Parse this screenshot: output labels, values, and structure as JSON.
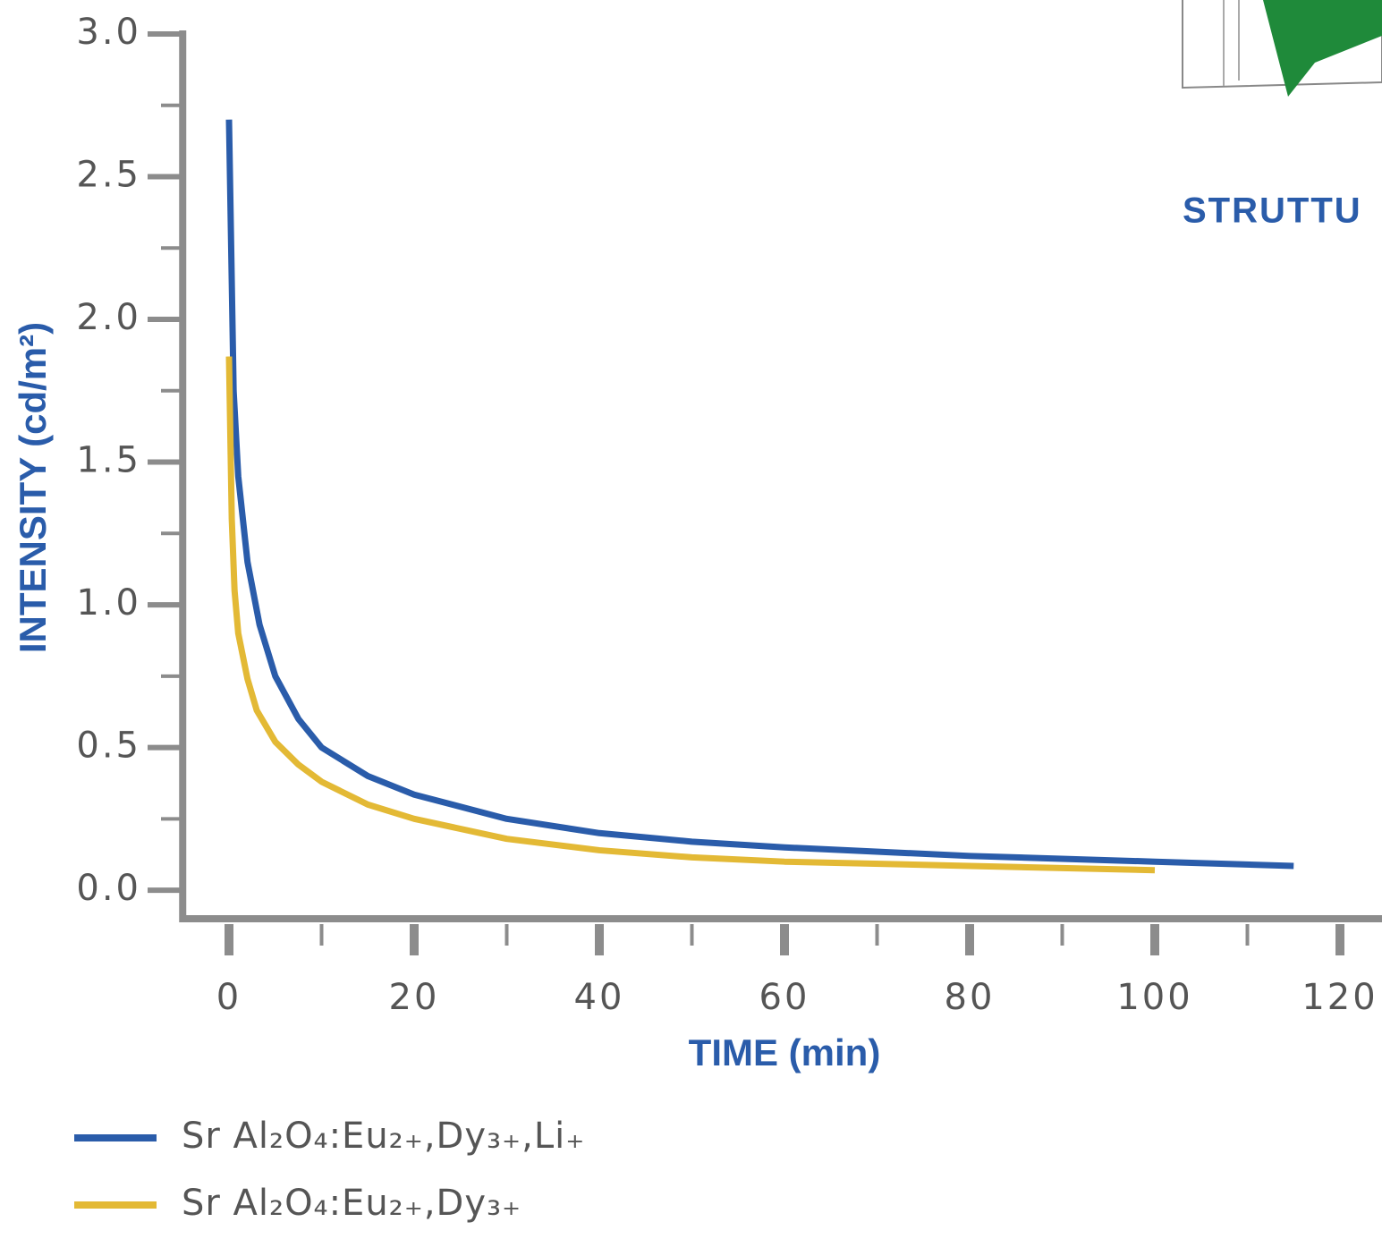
{
  "chart_data": {
    "type": "line",
    "x_label": "TIME (min)",
    "y_label": "INTENSITY (cd/m²)",
    "annotations": [
      "STRUTTU"
    ],
    "xlim": [
      -5,
      125
    ],
    "ylim": [
      -0.1,
      3.0
    ],
    "xticks": [
      0,
      20,
      40,
      60,
      80,
      100,
      120
    ],
    "xminorticks": [
      10,
      30,
      50,
      70,
      90,
      110
    ],
    "yticks": [
      {
        "value": 0,
        "label": "0.0"
      },
      0.5,
      {
        "value": 1,
        "label": "1.0"
      },
      1.5,
      {
        "value": 2,
        "label": "2.0"
      },
      2.5,
      {
        "value": 3,
        "label": "3.0"
      }
    ],
    "yminorticks": [
      0.25,
      0.75,
      1.25,
      1.75,
      2.25,
      2.75
    ],
    "axis_color": "#8c8c8c",
    "series": [
      {
        "name": "Sr Al₂O₄:Eu₂₊,Dy₃₊,Li₊",
        "color": "#2a5caa",
        "x": [
          0,
          0.5,
          1,
          2,
          3.3,
          5,
          7.5,
          10,
          15,
          20,
          30,
          40,
          50,
          60,
          80,
          100,
          115
        ],
        "values": [
          2.7,
          1.75,
          1.45,
          1.15,
          0.93,
          0.75,
          0.6,
          0.5,
          0.4,
          0.335,
          0.25,
          0.2,
          0.17,
          0.15,
          0.12,
          0.1,
          0.085
        ]
      },
      {
        "name": "Sr Al₂O₄:Eu₂₊,Dy₃₊",
        "color": "#e3b935",
        "x": [
          0,
          0.3,
          0.6,
          1,
          2,
          3,
          5,
          7.5,
          10,
          15,
          20,
          30,
          40,
          50,
          60,
          80,
          100
        ],
        "values": [
          1.87,
          1.3,
          1.05,
          0.9,
          0.74,
          0.63,
          0.52,
          0.44,
          0.38,
          0.3,
          0.25,
          0.18,
          0.14,
          0.115,
          0.1,
          0.085,
          0.07
        ]
      }
    ]
  }
}
